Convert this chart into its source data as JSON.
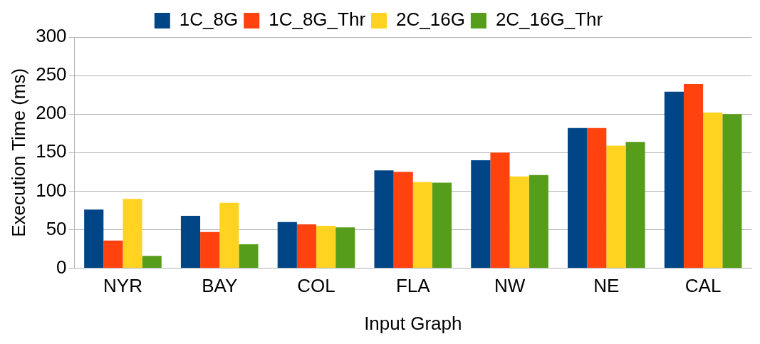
{
  "chart_data": {
    "type": "bar",
    "xlabel": "Input Graph",
    "ylabel": "Execution Time (ms)",
    "categories": [
      "NYR",
      "BAY",
      "COL",
      "FLA",
      "NW",
      "NE",
      "CAL"
    ],
    "series": [
      {
        "name": "1C_8G",
        "color": "#004586",
        "values": [
          76,
          68,
          60,
          127,
          140,
          182,
          229
        ]
      },
      {
        "name": "1C_8G_Thr",
        "color": "#ff420e",
        "values": [
          36,
          47,
          57,
          125,
          150,
          182,
          239
        ]
      },
      {
        "name": "2C_16G",
        "color": "#ffd320",
        "values": [
          90,
          85,
          55,
          112,
          119,
          159,
          202
        ]
      },
      {
        "name": "2C_16G_Thr",
        "color": "#579d1c",
        "values": [
          16,
          31,
          53,
          111,
          121,
          164,
          200
        ]
      }
    ],
    "ylim": [
      0,
      300
    ],
    "yticks": [
      0,
      50,
      100,
      150,
      200,
      250,
      300
    ],
    "grid": "y",
    "legend": "top"
  }
}
